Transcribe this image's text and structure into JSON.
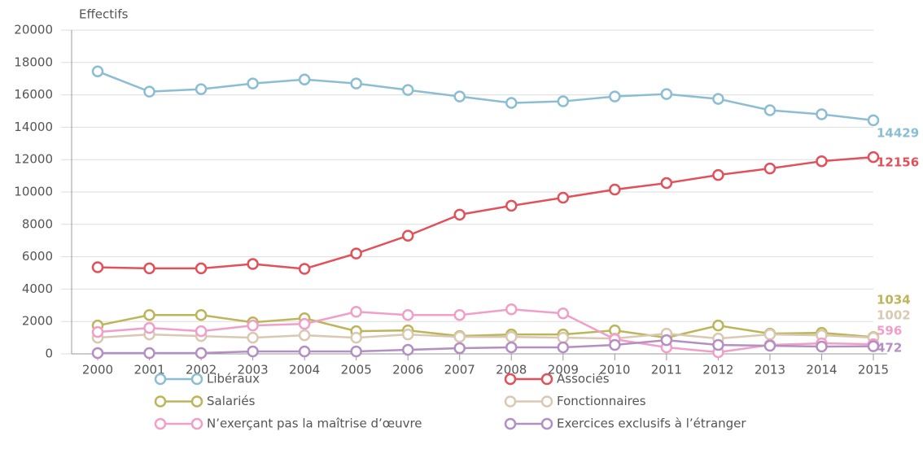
{
  "chart_data": {
    "type": "line",
    "y_label": "Effectifs",
    "x": [
      2000,
      2001,
      2002,
      2003,
      2004,
      2005,
      2006,
      2007,
      2008,
      2009,
      2010,
      2011,
      2012,
      2013,
      2014,
      2015
    ],
    "ylim": [
      0,
      20000
    ],
    "yticks": [
      0,
      2000,
      4000,
      6000,
      8000,
      10000,
      12000,
      14000,
      16000,
      18000,
      20000
    ],
    "grid": true,
    "series": [
      {
        "name": "Libéraux",
        "color": "#8bbdd3",
        "values": [
          17450,
          16200,
          16350,
          16700,
          16950,
          16700,
          16300,
          15900,
          15500,
          15600,
          15900,
          16050,
          15750,
          15050,
          14800,
          14429
        ]
      },
      {
        "name": "Associés",
        "color": "#e2505a",
        "values": [
          5350,
          5280,
          5280,
          5550,
          5250,
          6200,
          7300,
          8600,
          9150,
          9650,
          10150,
          10550,
          11050,
          11450,
          11900,
          12156
        ]
      },
      {
        "name": "Salariés",
        "color": "#bcb55a",
        "values": [
          1750,
          2400,
          2400,
          1950,
          2200,
          1400,
          1450,
          1100,
          1200,
          1200,
          1450,
          1000,
          1750,
          1250,
          1300,
          1034
        ]
      },
      {
        "name": "Fonctionnaires",
        "color": "#d9c9b3",
        "values": [
          1000,
          1200,
          1100,
          1000,
          1150,
          1000,
          1200,
          1050,
          1050,
          1000,
          950,
          1250,
          950,
          1200,
          1150,
          1002
        ]
      },
      {
        "name": "N’exerçant pas la maîtrise d’œuvre",
        "color": "#f09fc8",
        "values": [
          1350,
          1600,
          1400,
          1750,
          1850,
          2600,
          2400,
          2400,
          2750,
          2500,
          900,
          400,
          100,
          550,
          650,
          596
        ]
      },
      {
        "name": "Exercices exclusifs à l’étranger",
        "color": "#b38fc2",
        "values": [
          50,
          50,
          50,
          150,
          150,
          150,
          250,
          350,
          400,
          400,
          550,
          850,
          550,
          500,
          450,
          472
        ]
      }
    ]
  }
}
